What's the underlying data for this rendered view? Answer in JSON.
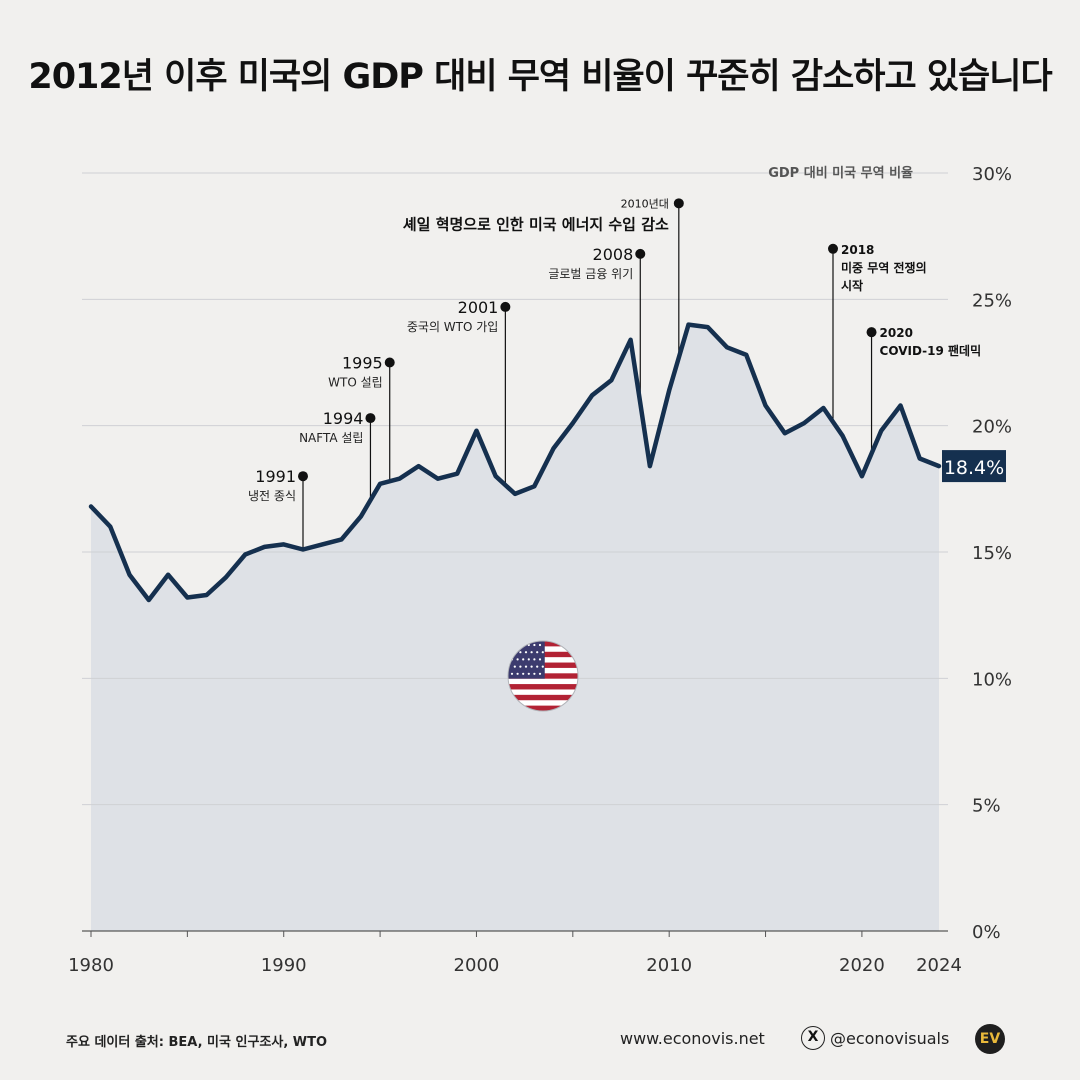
{
  "title": "2012년 이후 미국의 GDP 대비 무역 비율이 꾸준히 감소하고 있습니다",
  "colors": {
    "line": "#15304f",
    "area": "#dcdfe4",
    "background": "#f1f0ee",
    "badge": "#15304f"
  },
  "chart_data": {
    "type": "area",
    "series_label": "GDP 대비 미국 무역 비율",
    "x": [
      1980,
      1981,
      1982,
      1983,
      1984,
      1985,
      1986,
      1987,
      1988,
      1989,
      1990,
      1991,
      1992,
      1993,
      1994,
      1995,
      1996,
      1997,
      1998,
      1999,
      2000,
      2001,
      2002,
      2003,
      2004,
      2005,
      2006,
      2007,
      2008,
      2009,
      2010,
      2011,
      2012,
      2013,
      2014,
      2015,
      2016,
      2017,
      2018,
      2019,
      2020,
      2021,
      2022,
      2023,
      2024
    ],
    "values": [
      16.8,
      16.0,
      14.1,
      13.1,
      14.1,
      13.2,
      13.3,
      14.0,
      14.9,
      15.2,
      15.3,
      15.1,
      15.3,
      15.5,
      16.4,
      17.7,
      17.9,
      18.4,
      17.9,
      18.1,
      19.8,
      18.0,
      17.3,
      17.6,
      19.1,
      20.1,
      21.2,
      21.8,
      23.4,
      18.4,
      21.4,
      24.0,
      23.9,
      23.1,
      22.8,
      20.8,
      19.7,
      20.1,
      20.7,
      19.6,
      18.0,
      19.8,
      20.8,
      18.7,
      18.4
    ],
    "ylim": [
      0,
      30
    ],
    "yticks": [
      "0%",
      "5%",
      "10%",
      "15%",
      "20%",
      "25%",
      "30%"
    ],
    "xticks": [
      {
        "year": 1980,
        "label": "1980"
      },
      {
        "year": 1990,
        "label": "1990"
      },
      {
        "year": 2000,
        "label": "2000"
      },
      {
        "year": 2010,
        "label": "2010"
      },
      {
        "year": 2020,
        "label": "2020"
      },
      {
        "year": 2024,
        "label": "2024"
      }
    ],
    "last_value_label": "18.4%",
    "annotations": [
      {
        "year": 1991,
        "value": 18.0,
        "label_year": "1991",
        "label_text": "냉전 종식",
        "side": "left"
      },
      {
        "year": 1994.5,
        "value": 20.3,
        "label_year": "1994",
        "label_text": "NAFTA 설립",
        "side": "left"
      },
      {
        "year": 1995.5,
        "value": 22.5,
        "label_year": "1995",
        "label_text": "WTO 설립",
        "side": "left"
      },
      {
        "year": 2001.5,
        "value": 24.7,
        "label_year": "2001",
        "label_text": "중국의 WTO 가입",
        "side": "left"
      },
      {
        "year": 2008.5,
        "value": 26.8,
        "label_year": "2008",
        "label_text": "글로벌 금융 위기",
        "side": "left"
      },
      {
        "year": 2010.5,
        "value": 28.8,
        "label_year": "2010년대",
        "label_text": "셰일 혁명으로 인한 미국 에너지 수입 감소",
        "side": "left"
      },
      {
        "year": 2018.5,
        "value": 27.0,
        "label_year": "2018",
        "label_text": "미중 무역 전쟁의",
        "label_text2": "시작",
        "side": "right"
      },
      {
        "year": 2020.5,
        "value": 23.7,
        "label_year": "2020",
        "label_text": "COVID-19 팬데믹",
        "side": "right"
      }
    ]
  },
  "footer": {
    "source": "주요 데이터 출처: BEA, 미국 인구조사, WTO",
    "website": "www.econovis.net",
    "x_icon": "X",
    "handle": "@econovisuals",
    "logo": "EV"
  }
}
